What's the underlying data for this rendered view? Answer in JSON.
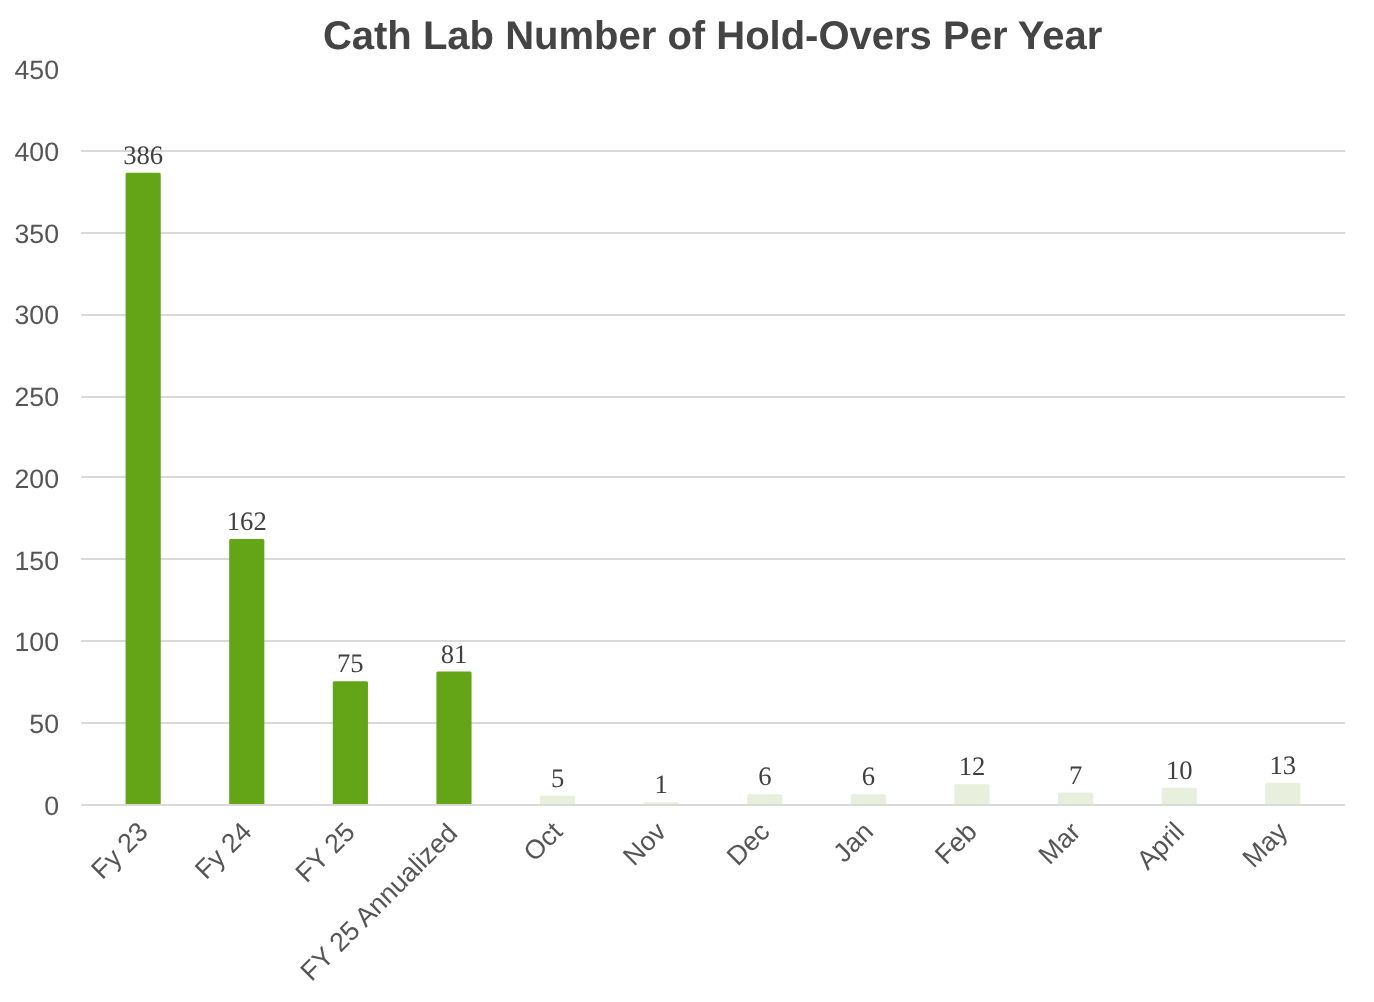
{
  "chart_data": {
    "type": "bar",
    "title": "Cath Lab Number of Hold-Overs Per Year",
    "categories": [
      "Fy 23",
      "Fy 24",
      "FY 25",
      "FY 25 Annualized",
      "Oct",
      "Nov",
      "Dec",
      "Jan",
      "Feb",
      "Mar",
      "April",
      "May"
    ],
    "values": [
      386,
      162,
      75,
      81,
      5,
      1,
      6,
      6,
      12,
      7,
      10,
      13
    ],
    "colors": [
      "#63a517",
      "#63a517",
      "#63a517",
      "#63a517",
      "#e8efdc",
      "#e8efdc",
      "#e8efdc",
      "#e8efdc",
      "#e8efdc",
      "#e8efdc",
      "#e8efdc",
      "#e8efdc"
    ],
    "ylim": [
      0,
      450
    ],
    "yticks": [
      0,
      50,
      100,
      150,
      200,
      250,
      300,
      350,
      400,
      450
    ],
    "grid": "y",
    "data_labels": true
  }
}
